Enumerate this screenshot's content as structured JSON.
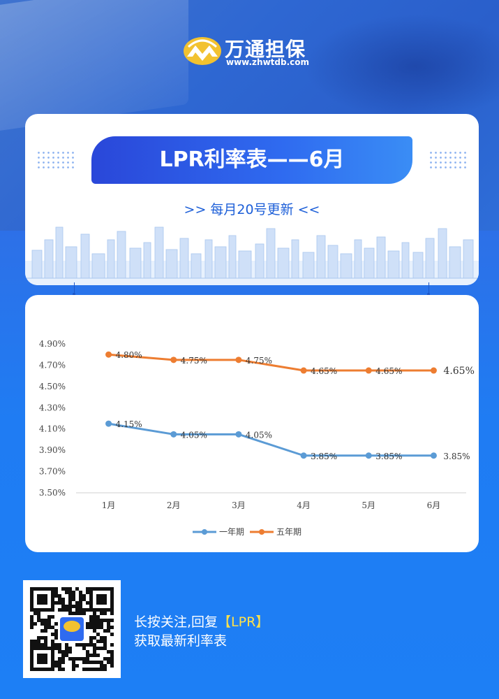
{
  "brand": {
    "name": "万通担保",
    "url": "www.zhwtdb.com"
  },
  "header": {
    "title": "LPR利率表——6月",
    "subtitle": ">>  每月20号更新  <<"
  },
  "colors": {
    "one_year": "#5b9bd5",
    "five_year": "#ed7d31",
    "accent": "#2f6bf0"
  },
  "chart_data": {
    "type": "line",
    "categories": [
      "1月",
      "2月",
      "3月",
      "4月",
      "5月",
      "6月"
    ],
    "series": [
      {
        "name": "一年期",
        "values": [
          4.15,
          4.05,
          4.05,
          3.85,
          3.85,
          3.85
        ],
        "labels": [
          "4.15%",
          "4.05%",
          "4.05%",
          "3.85%",
          "3.85%",
          "3.85%"
        ]
      },
      {
        "name": "五年期",
        "values": [
          4.8,
          4.75,
          4.75,
          4.65,
          4.65,
          4.65
        ],
        "labels": [
          "4.80%",
          "4.75%",
          "4.75%",
          "4.65%",
          "4.65%",
          "4.65%"
        ]
      }
    ],
    "yticks": [
      "4.90%",
      "4.70%",
      "4.50%",
      "4.30%",
      "4.10%",
      "3.90%",
      "3.70%",
      "3.50%"
    ],
    "ytick_values": [
      4.9,
      4.7,
      4.5,
      4.3,
      4.1,
      3.9,
      3.7,
      3.5
    ],
    "ylim": [
      3.5,
      4.9
    ],
    "legend": "bottom",
    "grid": false
  },
  "footer": {
    "cta_prefix": "长按关注,回复",
    "cta_keyword": "【LPR】",
    "cta_line2": "获取最新利率表"
  }
}
